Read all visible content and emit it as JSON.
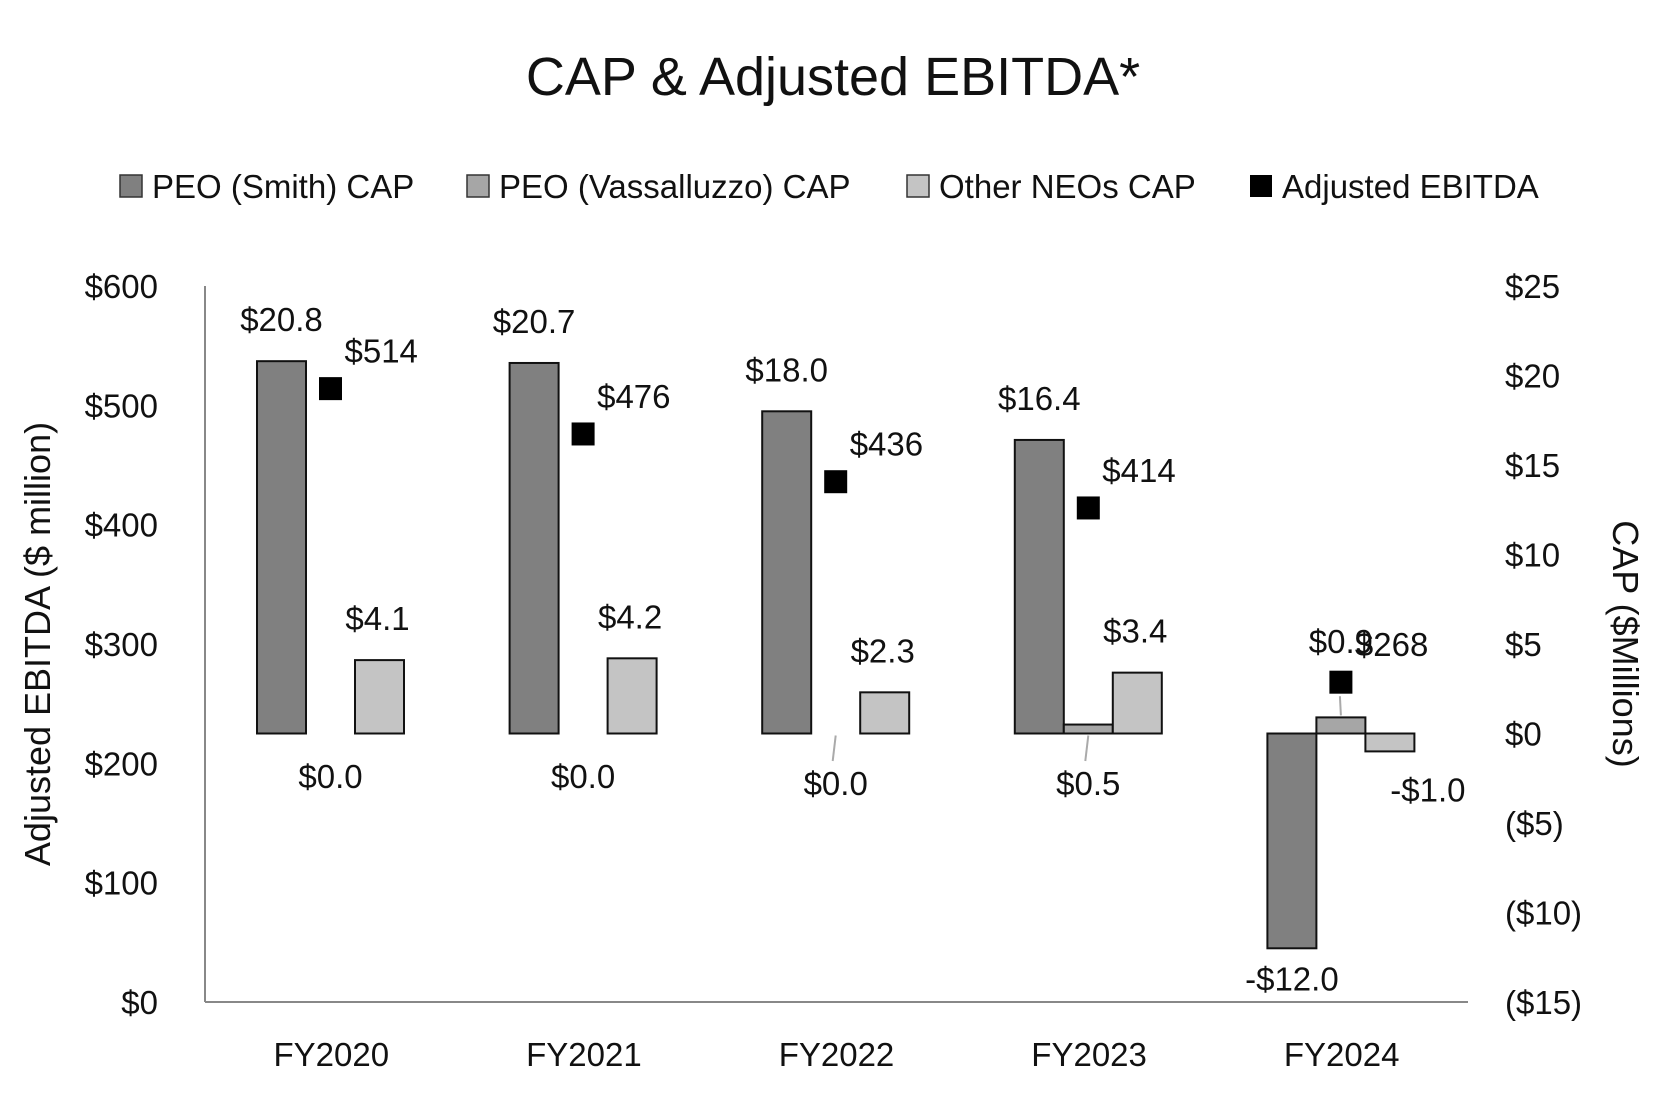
{
  "chart_data": {
    "type": "bar",
    "title": "CAP & Adjusted EBITDA*",
    "categories": [
      "FY2020",
      "FY2021",
      "FY2022",
      "FY2023",
      "FY2024"
    ],
    "series": [
      {
        "name": "PEO (Smith) CAP",
        "axis": "right",
        "mark": "bar",
        "color": "#808080",
        "values": [
          20.8,
          20.7,
          18.0,
          16.4,
          -12.0
        ],
        "labels": [
          "$20.8",
          "$20.7",
          "$18.0",
          "$16.4",
          "-$12.0"
        ]
      },
      {
        "name": "PEO (Vassalluzzo) CAP",
        "axis": "right",
        "mark": "bar",
        "color": "#a6a6a6",
        "values": [
          0.0,
          0.0,
          0.0,
          0.5,
          0.9
        ],
        "labels": [
          "$0.0",
          "$0.0",
          "$0.0",
          "$0.5",
          "$0.9"
        ]
      },
      {
        "name": "Other NEOs CAP",
        "axis": "right",
        "mark": "bar",
        "color": "#c4c4c4",
        "values": [
          4.1,
          4.2,
          2.3,
          3.4,
          -1.0
        ],
        "labels": [
          "$4.1",
          "$4.2",
          "$2.3",
          "$3.4",
          "-$1.0"
        ]
      },
      {
        "name": "Adjusted EBITDA",
        "axis": "left",
        "mark": "marker",
        "color": "#000000",
        "values": [
          514,
          476,
          436,
          414,
          268
        ],
        "labels": [
          "$514",
          "$476",
          "$436",
          "$414",
          "$268"
        ]
      }
    ],
    "y_left": {
      "label": "Adjusted EBITDA ($ million)",
      "range": [
        0,
        600
      ],
      "ticks": [
        0,
        100,
        200,
        300,
        400,
        500,
        600
      ],
      "tick_labels": [
        "$0",
        "$100",
        "$200",
        "$300",
        "$400",
        "$500",
        "$600"
      ]
    },
    "y_right": {
      "label": "CAP ($Millions)",
      "range": [
        -15,
        25
      ],
      "ticks": [
        -15,
        -10,
        -5,
        0,
        5,
        10,
        15,
        20,
        25
      ],
      "tick_labels": [
        "($15)",
        "($10)",
        "($5)",
        "$0",
        "$5",
        "$10",
        "$15",
        "$20",
        "$25"
      ]
    },
    "legend_position": "top",
    "grid": false
  }
}
